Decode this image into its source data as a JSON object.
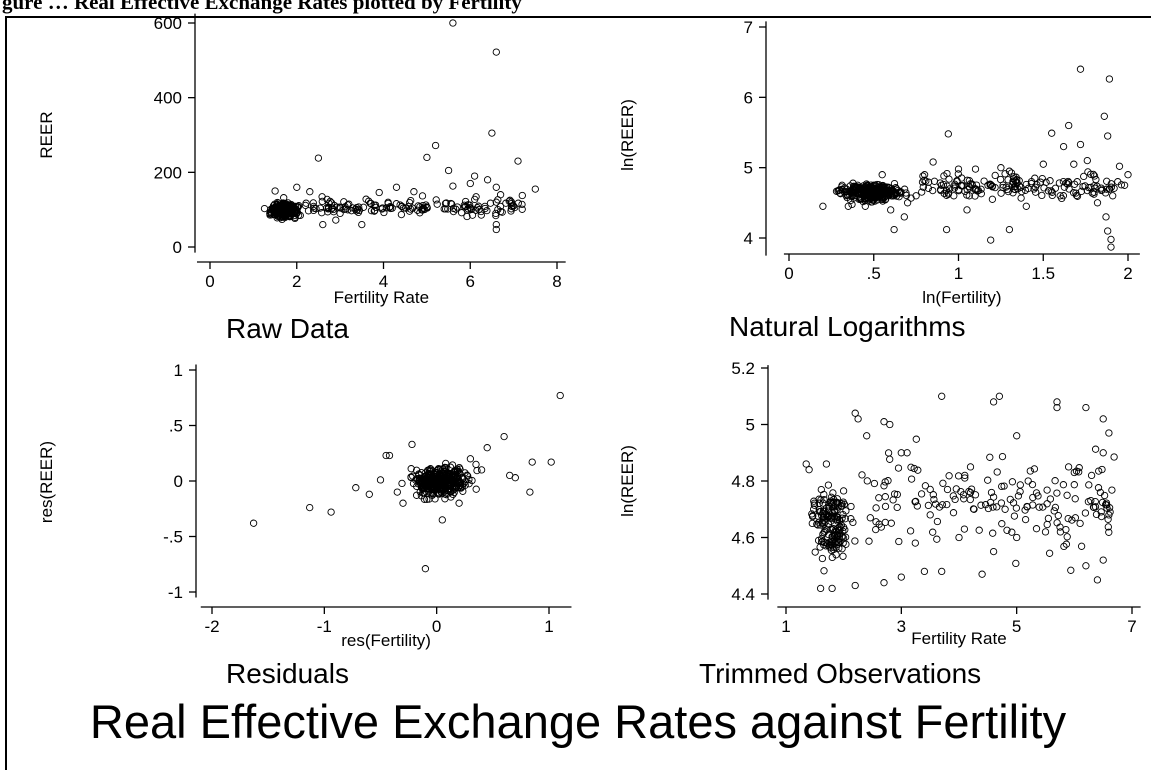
{
  "header_fragment": "gure … Real Effective Exchange Rates plotted by Fertility",
  "main_title": "Real Effective Exchange Rates against Fertility",
  "chart_data": [
    {
      "id": "raw",
      "type": "scatter",
      "title": "Raw Data",
      "xlabel": "Fertility Rate",
      "ylabel": "REER",
      "xlim": [
        -0.3,
        8.2
      ],
      "ylim": [
        -15,
        625
      ],
      "xticks": [
        0,
        2,
        4,
        6,
        8
      ],
      "xtick_labels": [
        "0",
        "2",
        "4",
        "6",
        "8"
      ],
      "yticks": [
        0,
        200,
        400,
        600
      ],
      "ytick_labels": [
        "0",
        "200",
        "400",
        "600"
      ],
      "points": [
        [
          5.6,
          600
        ],
        [
          6.6,
          522
        ],
        [
          6.5,
          305
        ],
        [
          5.2,
          272
        ],
        [
          5.5,
          205
        ],
        [
          5.6,
          163
        ],
        [
          6.0,
          170
        ],
        [
          5.0,
          240
        ],
        [
          2.5,
          238
        ],
        [
          7.1,
          230
        ],
        [
          6.1,
          190
        ],
        [
          6.4,
          180
        ],
        [
          6.6,
          160
        ],
        [
          6.7,
          140
        ],
        [
          6.6,
          120
        ],
        [
          6.7,
          95
        ],
        [
          6.6,
          60
        ],
        [
          6.6,
          47
        ],
        [
          7.2,
          138
        ],
        [
          7.5,
          155
        ],
        [
          4.3,
          160
        ],
        [
          4.7,
          148
        ],
        [
          4.9,
          137
        ],
        [
          3.9,
          146
        ],
        [
          3.6,
          128
        ],
        [
          3.2,
          115
        ],
        [
          3.0,
          90
        ],
        [
          3.5,
          60
        ],
        [
          2.9,
          72
        ],
        [
          2.6,
          60
        ],
        [
          2.3,
          148
        ],
        [
          2.0,
          160
        ],
        [
          1.5,
          150
        ],
        [
          1.7,
          132
        ],
        [
          7.0,
          110
        ],
        [
          6.2,
          100
        ],
        [
          5.8,
          92
        ],
        [
          5.4,
          102
        ],
        [
          4.8,
          110
        ],
        [
          4.6,
          96
        ],
        [
          4.2,
          104
        ],
        [
          3.8,
          98
        ],
        [
          3.4,
          100
        ],
        [
          2.8,
          102
        ],
        [
          2.4,
          104
        ]
      ],
      "cluster": {
        "x_range": [
          1.2,
          2.2
        ],
        "y_range": [
          68,
          128
        ],
        "count": 340,
        "seed": 11
      },
      "band": {
        "x_range": [
          2.2,
          7.2
        ],
        "y_range": [
          70,
          145
        ],
        "count": 140,
        "seed": 21
      }
    },
    {
      "id": "log",
      "type": "scatter",
      "title": "Natural Logarithms",
      "xlabel": "ln(Fertility)",
      "ylabel": "ln(REER)",
      "xlim": [
        -0.03,
        2.07
      ],
      "ylim": [
        3.75,
        7.08
      ],
      "xticks": [
        0,
        0.5,
        1,
        1.5,
        2
      ],
      "xtick_labels": [
        "0",
        ".5",
        "1",
        "1.5",
        "2"
      ],
      "yticks": [
        4,
        5,
        6,
        7
      ],
      "ytick_labels": [
        "4",
        "5",
        "6",
        "7"
      ],
      "points": [
        [
          1.72,
          6.4
        ],
        [
          1.89,
          6.26
        ],
        [
          1.65,
          5.6
        ],
        [
          1.86,
          5.73
        ],
        [
          1.55,
          5.49
        ],
        [
          0.94,
          5.48
        ],
        [
          1.88,
          5.45
        ],
        [
          1.62,
          5.3
        ],
        [
          1.72,
          5.33
        ],
        [
          1.25,
          5.0
        ],
        [
          1.3,
          4.95
        ],
        [
          1.1,
          4.98
        ],
        [
          1.0,
          4.98
        ],
        [
          0.85,
          5.08
        ],
        [
          1.19,
          3.97
        ],
        [
          1.3,
          4.12
        ],
        [
          0.93,
          4.12
        ],
        [
          0.62,
          4.12
        ],
        [
          0.68,
          4.3
        ],
        [
          1.9,
          3.87
        ],
        [
          1.9,
          3.98
        ],
        [
          1.88,
          4.1
        ],
        [
          1.87,
          4.3
        ],
        [
          1.82,
          4.5
        ],
        [
          1.91,
          4.6
        ],
        [
          1.94,
          4.8
        ],
        [
          1.76,
          5.1
        ],
        [
          1.95,
          5.02
        ],
        [
          1.68,
          5.05
        ],
        [
          1.5,
          5.05
        ],
        [
          1.45,
          4.85
        ],
        [
          1.35,
          4.7
        ],
        [
          1.4,
          4.45
        ],
        [
          1.2,
          4.55
        ],
        [
          1.1,
          4.7
        ],
        [
          0.9,
          4.75
        ],
        [
          0.8,
          4.9
        ],
        [
          0.75,
          4.6
        ],
        [
          0.7,
          4.5
        ],
        [
          0.6,
          4.4
        ],
        [
          0.55,
          4.9
        ],
        [
          0.45,
          4.45
        ],
        [
          0.35,
          4.45
        ],
        [
          0.2,
          4.45
        ],
        [
          1.05,
          4.4
        ],
        [
          1.6,
          4.6
        ],
        [
          1.7,
          4.8
        ],
        [
          1.8,
          4.65
        ],
        [
          2.0,
          4.9
        ],
        [
          1.98,
          4.75
        ]
      ],
      "cluster": {
        "x_range": [
          0.18,
          0.78
        ],
        "y_range": [
          4.45,
          4.85
        ],
        "count": 320,
        "seed": 33
      },
      "band": {
        "x_range": [
          0.78,
          1.97
        ],
        "y_range": [
          4.45,
          5.0
        ],
        "count": 160,
        "seed": 44
      }
    },
    {
      "id": "res",
      "type": "scatter",
      "title": "Residuals",
      "xlabel": "res(Fertility)",
      "ylabel": "res(REER)",
      "xlim": [
        -2.1,
        1.2
      ],
      "ylim": [
        -1.05,
        1.05
      ],
      "xticks": [
        -2,
        -1,
        0,
        1
      ],
      "xtick_labels": [
        "-2",
        "-1",
        "0",
        "1"
      ],
      "yticks": [
        -1,
        -0.5,
        0,
        0.5,
        1
      ],
      "ytick_labels": [
        "-1",
        "-.5",
        "0",
        ".5",
        "1"
      ],
      "points": [
        [
          -1.63,
          -0.38
        ],
        [
          -1.13,
          -0.24
        ],
        [
          -0.94,
          -0.28
        ],
        [
          -0.72,
          -0.06
        ],
        [
          -0.6,
          -0.12
        ],
        [
          -0.5,
          0.01
        ],
        [
          -0.45,
          0.23
        ],
        [
          -0.42,
          0.23
        ],
        [
          -0.1,
          -0.79
        ],
        [
          1.1,
          0.77
        ],
        [
          1.02,
          0.17
        ],
        [
          0.85,
          0.17
        ],
        [
          0.83,
          -0.1
        ],
        [
          0.6,
          0.4
        ],
        [
          0.45,
          0.3
        ],
        [
          0.7,
          0.03
        ],
        [
          0.65,
          0.05
        ],
        [
          -0.22,
          0.33
        ],
        [
          -0.3,
          -0.2
        ],
        [
          0.05,
          -0.35
        ],
        [
          0.3,
          0.2
        ],
        [
          0.2,
          -0.2
        ],
        [
          0.35,
          0.15
        ],
        [
          0.4,
          0.1
        ],
        [
          -0.35,
          -0.1
        ]
      ],
      "cluster": {
        "x_range": [
          -0.38,
          0.42
        ],
        "y_range": [
          -0.22,
          0.2
        ],
        "count": 380,
        "seed": 55
      }
    },
    {
      "id": "trim",
      "type": "scatter",
      "title": "Trimmed Observations",
      "xlabel": "Fertility Rate",
      "ylabel": "ln(REER)",
      "xlim": [
        0.85,
        7.15
      ],
      "ylim": [
        4.38,
        5.21
      ],
      "xticks": [
        1,
        3,
        5,
        7
      ],
      "xtick_labels": [
        "1",
        "3",
        "5",
        "7"
      ],
      "yticks": [
        4.4,
        4.6,
        4.8,
        5,
        5.2
      ],
      "ytick_labels": [
        "4.4",
        "4.6",
        "4.8",
        "5",
        "5.2"
      ],
      "points": [
        [
          2.2,
          5.04
        ],
        [
          2.25,
          5.02
        ],
        [
          3.7,
          5.1
        ],
        [
          4.7,
          5.1
        ],
        [
          4.6,
          5.08
        ],
        [
          5.7,
          5.08
        ],
        [
          5.7,
          5.06
        ],
        [
          6.2,
          5.06
        ],
        [
          6.5,
          5.02
        ],
        [
          2.7,
          5.01
        ],
        [
          2.8,
          5.0
        ],
        [
          2.4,
          4.96
        ],
        [
          1.4,
          4.84
        ],
        [
          1.35,
          4.86
        ],
        [
          1.7,
          4.86
        ],
        [
          3.0,
          4.9
        ],
        [
          3.1,
          4.9
        ],
        [
          5.0,
          4.96
        ],
        [
          4.2,
          4.85
        ],
        [
          4.1,
          4.82
        ],
        [
          6.6,
          4.97
        ],
        [
          6.5,
          4.9
        ],
        [
          6.3,
          4.82
        ],
        [
          6.6,
          4.68
        ],
        [
          6.5,
          4.52
        ],
        [
          6.4,
          4.45
        ],
        [
          6.2,
          4.5
        ],
        [
          6.1,
          4.65
        ],
        [
          5.5,
          4.62
        ],
        [
          5.0,
          4.6
        ],
        [
          4.6,
          4.55
        ],
        [
          4.4,
          4.47
        ],
        [
          3.7,
          4.48
        ],
        [
          3.4,
          4.48
        ],
        [
          3.0,
          4.46
        ],
        [
          2.7,
          4.44
        ],
        [
          2.2,
          4.43
        ],
        [
          1.6,
          4.42
        ],
        [
          1.8,
          4.42
        ],
        [
          5.9,
          4.85
        ],
        [
          5.2,
          4.8
        ],
        [
          4.8,
          4.7
        ],
        [
          4.0,
          4.6
        ],
        [
          3.5,
          4.68
        ],
        [
          3.8,
          4.77
        ],
        [
          6.0,
          4.83
        ]
      ],
      "cluster": {
        "x_range": [
          1.3,
          2.3
        ],
        "y_range": [
          4.45,
          4.85
        ],
        "count": 170,
        "seed": 66
      },
      "band": {
        "x_range": [
          2.3,
          6.7
        ],
        "y_range": [
          4.42,
          5.0
        ],
        "count": 170,
        "seed": 77
      }
    }
  ]
}
